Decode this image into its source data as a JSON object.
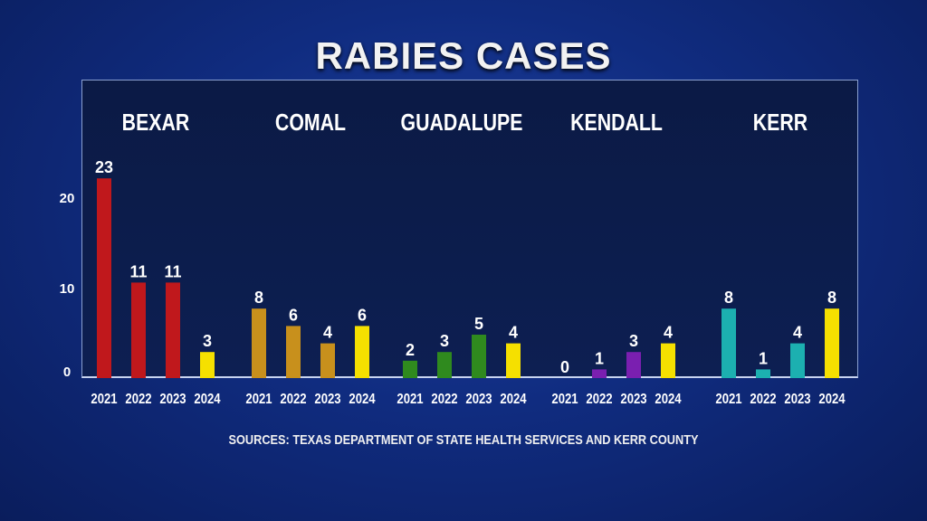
{
  "chart_data": {
    "type": "bar",
    "title": "RABIES CASES",
    "source": "SOURCES: TEXAS DEPARTMENT OF STATE HEALTH SERVICES AND KERR COUNTY",
    "yticks": [
      0,
      10,
      20
    ],
    "ylim": [
      0,
      25
    ],
    "groups": [
      {
        "name": "BEXAR",
        "color": "#c0181c",
        "years": [
          "2021",
          "2022",
          "2023",
          "2024"
        ],
        "values": [
          23,
          11,
          11,
          3
        ]
      },
      {
        "name": "COMAL",
        "color": "#c8901c",
        "years": [
          "2021",
          "2022",
          "2023",
          "2024"
        ],
        "values": [
          8,
          6,
          4,
          6
        ]
      },
      {
        "name": "GUADALUPE",
        "color": "#2f8a1e",
        "years": [
          "2021",
          "2022",
          "2023",
          "2024"
        ],
        "values": [
          2,
          3,
          5,
          4
        ]
      },
      {
        "name": "KENDALL",
        "color": "#7a1fb0",
        "years": [
          "2021",
          "2022",
          "2023",
          "2024"
        ],
        "values": [
          0,
          1,
          3,
          4
        ]
      },
      {
        "name": "KERR",
        "color": "#1cb0b0",
        "years": [
          "2021",
          "2022",
          "2023",
          "2024"
        ],
        "values": [
          8,
          1,
          4,
          8
        ]
      }
    ],
    "highlight_color_2024": "#f5e000"
  }
}
